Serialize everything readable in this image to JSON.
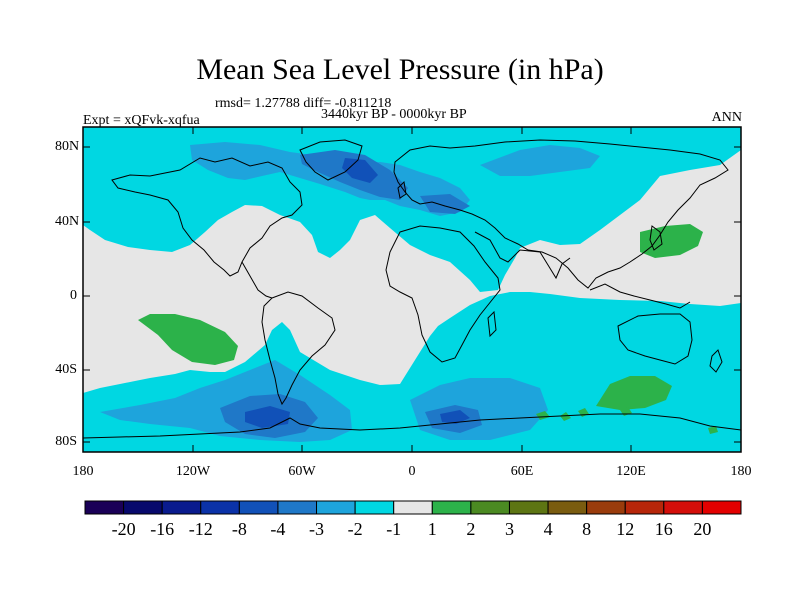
{
  "map": {
    "title": "Mean Sea Level Pressure (in hPa)",
    "stats": "rmsd= 1.27788 diff= -0.811218",
    "period": "3440kyr BP - 0000kyr BP",
    "experiment": "Expt = xQFvk-xqfua",
    "season": "ANN",
    "projection": "equirectangular",
    "lon_range": [
      -180,
      180
    ],
    "lat_range": [
      -90,
      90
    ],
    "y_ticks": [
      "80N",
      "40N",
      "0",
      "40S",
      "80S"
    ],
    "x_ticks": [
      "180",
      "120W",
      "60W",
      "0",
      "60E",
      "120E",
      "180"
    ]
  },
  "colorbar": {
    "labels": [
      "-20",
      "-16",
      "-12",
      "-8",
      "-4",
      "-3",
      "-2",
      "-1",
      "1",
      "2",
      "3",
      "4",
      "8",
      "12",
      "16",
      "20"
    ],
    "colors": [
      "#1a0057",
      "#07096c",
      "#0a1b8e",
      "#0b32a8",
      "#1151b8",
      "#1f78c8",
      "#1ea4dc",
      "#00d7e2",
      "#e6e6e6",
      "#2cb24a",
      "#4b8a22",
      "#5d7513",
      "#7a5c10",
      "#9a3c0c",
      "#b7260a",
      "#d40e0a",
      "#e30000"
    ]
  },
  "colors": {
    "background": "#e6e6e6",
    "coastline": "#000000"
  }
}
